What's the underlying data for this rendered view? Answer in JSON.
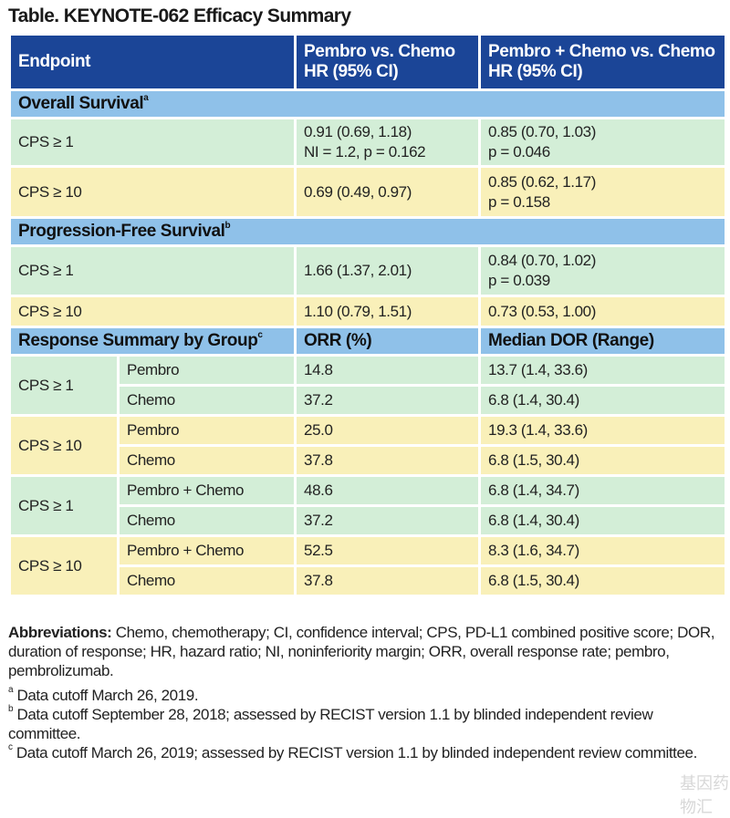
{
  "title": "Table. KEYNOTE-062 Efficacy Summary",
  "header": {
    "endpoint": "Endpoint",
    "col2": "Pembro vs. Chemo HR (95% CI)",
    "col3": "Pembro + Chemo vs. Chemo HR (95% CI)"
  },
  "os": {
    "label": "Overall Survival",
    "sup": "a",
    "rows": [
      {
        "group": "CPS ≥ 1",
        "c2a": "0.91 (0.69, 1.18)",
        "c2b": "NI = 1.2, p = 0.162",
        "c3a": "0.85 (0.70, 1.03)",
        "c3b": "p = 0.046"
      },
      {
        "group": "CPS ≥ 10",
        "c2a": "0.69 (0.49, 0.97)",
        "c3a": "0.85 (0.62, 1.17)",
        "c3b": "p = 0.158"
      }
    ]
  },
  "pfs": {
    "label": "Progression-Free Survival",
    "sup": "b",
    "rows": [
      {
        "group": "CPS ≥ 1",
        "c2a": "1.66 (1.37, 2.01)",
        "c3a": "0.84 (0.70, 1.02)",
        "c3b": "p = 0.039"
      },
      {
        "group": "CPS ≥ 10",
        "c2a": "1.10 (0.79, 1.51)",
        "c3a": "0.73 (0.53, 1.00)"
      }
    ]
  },
  "response": {
    "label": "Response Summary by Group",
    "sup": "c",
    "col2": "ORR (%)",
    "col3": "Median DOR (Range)",
    "groups": [
      {
        "group": "CPS ≥ 1",
        "rows": [
          {
            "arm": "Pembro",
            "orr": "14.8",
            "dor": "13.7 (1.4, 33.6)"
          },
          {
            "arm": "Chemo",
            "orr": "37.2",
            "dor": "6.8 (1.4, 30.4)"
          }
        ]
      },
      {
        "group": "CPS ≥ 10",
        "rows": [
          {
            "arm": "Pembro",
            "orr": "25.0",
            "dor": "19.3 (1.4, 33.6)"
          },
          {
            "arm": "Chemo",
            "orr": "37.8",
            "dor": "6.8 (1.5, 30.4)"
          }
        ]
      },
      {
        "group": "CPS ≥ 1",
        "rows": [
          {
            "arm": "Pembro + Chemo",
            "orr": "48.6",
            "dor": "6.8 (1.4, 34.7)"
          },
          {
            "arm": "Chemo",
            "orr": "37.2",
            "dor": "6.8 (1.4, 30.4)"
          }
        ]
      },
      {
        "group": "CPS ≥ 10",
        "rows": [
          {
            "arm": "Pembro + Chemo",
            "orr": "52.5",
            "dor": "8.3 (1.6, 34.7)"
          },
          {
            "arm": "Chemo",
            "orr": "37.8",
            "dor": "6.8 (1.5, 30.4)"
          }
        ]
      }
    ]
  },
  "footnotes": {
    "abbr_label": "Abbreviations:",
    "abbr_text": " Chemo, chemotherapy; CI, confidence interval; CPS, PD-L1 combined positive score; DOR, duration of response; HR, hazard ratio; NI, noninferiority margin; ORR, overall response rate; pembro, pembrolizumab.",
    "a": {
      "mark": "a",
      "text": " Data cutoff March 26, 2019."
    },
    "b": {
      "mark": "b",
      "text": " Data cutoff September 28, 2018; assessed by RECIST version 1.1 by blinded independent review committee."
    },
    "c": {
      "mark": "c",
      "text": " Data cutoff March 26, 2019; assessed by RECIST version 1.1 by blinded independent review committee."
    }
  },
  "watermark": "基因药物汇",
  "colors": {
    "header": "#1b4597",
    "section": "#8fc1e9",
    "green": "#d3eed7",
    "yellow": "#f9f0b9"
  }
}
